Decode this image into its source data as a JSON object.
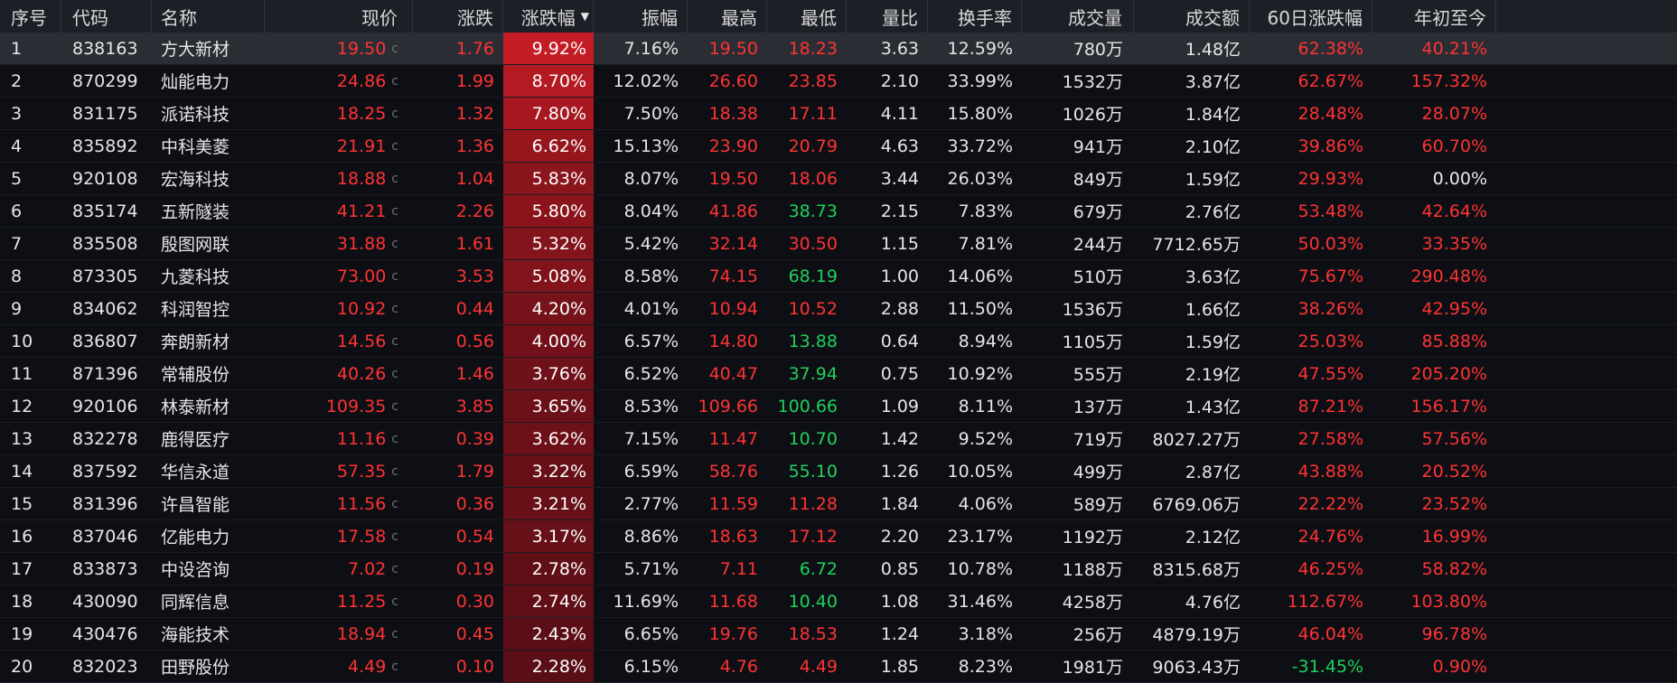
{
  "table": {
    "sort_column": "pct",
    "sort_direction": "desc",
    "sort_icon": "sort-desc-icon",
    "price_suffix": "c",
    "colors": {
      "up": "#ff3333",
      "down": "#1fd15b",
      "flat": "#e8e8e8",
      "heat_base": [
        90,
        14,
        22
      ],
      "heat_max": [
        196,
        28,
        36
      ]
    },
    "columns": [
      {
        "key": "seq",
        "label": "序号"
      },
      {
        "key": "code",
        "label": "代码"
      },
      {
        "key": "name",
        "label": "名称"
      },
      {
        "key": "price",
        "label": "现价"
      },
      {
        "key": "change",
        "label": "涨跌"
      },
      {
        "key": "pct",
        "label": "涨跌幅"
      },
      {
        "key": "amp",
        "label": "振幅"
      },
      {
        "key": "high",
        "label": "最高"
      },
      {
        "key": "low",
        "label": "最低"
      },
      {
        "key": "vr",
        "label": "量比"
      },
      {
        "key": "turnover",
        "label": "换手率"
      },
      {
        "key": "volume",
        "label": "成交量"
      },
      {
        "key": "amount",
        "label": "成交额"
      },
      {
        "key": "d60",
        "label": "60日涨跌幅"
      },
      {
        "key": "ytd",
        "label": "年初至今"
      }
    ],
    "rows": [
      {
        "seq": "1",
        "code": "838163",
        "name": "方大新材",
        "price": "19.50",
        "change": "1.76",
        "pct": "9.92%",
        "amp": "7.16%",
        "high": "19.50",
        "low": "18.23",
        "vr": "3.63",
        "turnover": "12.59%",
        "volume": "780万",
        "amount": "1.48亿",
        "d60": "62.38%",
        "ytd": "40.21%"
      },
      {
        "seq": "2",
        "code": "870299",
        "name": "灿能电力",
        "price": "24.86",
        "change": "1.99",
        "pct": "8.70%",
        "amp": "12.02%",
        "high": "26.60",
        "low": "23.85",
        "vr": "2.10",
        "turnover": "33.99%",
        "volume": "1532万",
        "amount": "3.87亿",
        "d60": "62.67%",
        "ytd": "157.32%"
      },
      {
        "seq": "3",
        "code": "831175",
        "name": "派诺科技",
        "price": "18.25",
        "change": "1.32",
        "pct": "7.80%",
        "amp": "7.50%",
        "high": "18.38",
        "low": "17.11",
        "vr": "4.11",
        "turnover": "15.80%",
        "volume": "1026万",
        "amount": "1.84亿",
        "d60": "28.48%",
        "ytd": "28.07%"
      },
      {
        "seq": "4",
        "code": "835892",
        "name": "中科美菱",
        "price": "21.91",
        "change": "1.36",
        "pct": "6.62%",
        "amp": "15.13%",
        "high": "23.90",
        "low": "20.79",
        "vr": "4.63",
        "turnover": "33.72%",
        "volume": "941万",
        "amount": "2.10亿",
        "d60": "39.86%",
        "ytd": "60.70%"
      },
      {
        "seq": "5",
        "code": "920108",
        "name": "宏海科技",
        "price": "18.88",
        "change": "1.04",
        "pct": "5.83%",
        "amp": "8.07%",
        "high": "19.50",
        "low": "18.06",
        "vr": "3.44",
        "turnover": "26.03%",
        "volume": "849万",
        "amount": "1.59亿",
        "d60": "29.93%",
        "ytd": "0.00%"
      },
      {
        "seq": "6",
        "code": "835174",
        "name": "五新隧装",
        "price": "41.21",
        "change": "2.26",
        "pct": "5.80%",
        "amp": "8.04%",
        "high": "41.86",
        "low": "38.73",
        "vr": "2.15",
        "turnover": "7.83%",
        "volume": "679万",
        "amount": "2.76亿",
        "d60": "53.48%",
        "ytd": "42.64%"
      },
      {
        "seq": "7",
        "code": "835508",
        "name": "殷图网联",
        "price": "31.88",
        "change": "1.61",
        "pct": "5.32%",
        "amp": "5.42%",
        "high": "32.14",
        "low": "30.50",
        "vr": "1.15",
        "turnover": "7.81%",
        "volume": "244万",
        "amount": "7712.65万",
        "d60": "50.03%",
        "ytd": "33.35%"
      },
      {
        "seq": "8",
        "code": "873305",
        "name": "九菱科技",
        "price": "73.00",
        "change": "3.53",
        "pct": "5.08%",
        "amp": "8.58%",
        "high": "74.15",
        "low": "68.19",
        "vr": "1.00",
        "turnover": "14.06%",
        "volume": "510万",
        "amount": "3.63亿",
        "d60": "75.67%",
        "ytd": "290.48%"
      },
      {
        "seq": "9",
        "code": "834062",
        "name": "科润智控",
        "price": "10.92",
        "change": "0.44",
        "pct": "4.20%",
        "amp": "4.01%",
        "high": "10.94",
        "low": "10.52",
        "vr": "2.88",
        "turnover": "11.50%",
        "volume": "1536万",
        "amount": "1.66亿",
        "d60": "38.26%",
        "ytd": "42.95%"
      },
      {
        "seq": "10",
        "code": "836807",
        "name": "奔朗新材",
        "price": "14.56",
        "change": "0.56",
        "pct": "4.00%",
        "amp": "6.57%",
        "high": "14.80",
        "low": "13.88",
        "vr": "0.64",
        "turnover": "8.94%",
        "volume": "1105万",
        "amount": "1.59亿",
        "d60": "25.03%",
        "ytd": "85.88%"
      },
      {
        "seq": "11",
        "code": "871396",
        "name": "常辅股份",
        "price": "40.26",
        "change": "1.46",
        "pct": "3.76%",
        "amp": "6.52%",
        "high": "40.47",
        "low": "37.94",
        "vr": "0.75",
        "turnover": "10.92%",
        "volume": "555万",
        "amount": "2.19亿",
        "d60": "47.55%",
        "ytd": "205.20%"
      },
      {
        "seq": "12",
        "code": "920106",
        "name": "林泰新材",
        "price": "109.35",
        "change": "3.85",
        "pct": "3.65%",
        "amp": "8.53%",
        "high": "109.66",
        "low": "100.66",
        "vr": "1.09",
        "turnover": "8.11%",
        "volume": "137万",
        "amount": "1.43亿",
        "d60": "87.21%",
        "ytd": "156.17%"
      },
      {
        "seq": "13",
        "code": "832278",
        "name": "鹿得医疗",
        "price": "11.16",
        "change": "0.39",
        "pct": "3.62%",
        "amp": "7.15%",
        "high": "11.47",
        "low": "10.70",
        "vr": "1.42",
        "turnover": "9.52%",
        "volume": "719万",
        "amount": "8027.27万",
        "d60": "27.58%",
        "ytd": "57.56%"
      },
      {
        "seq": "14",
        "code": "837592",
        "name": "华信永道",
        "price": "57.35",
        "change": "1.79",
        "pct": "3.22%",
        "amp": "6.59%",
        "high": "58.76",
        "low": "55.10",
        "vr": "1.26",
        "turnover": "10.05%",
        "volume": "499万",
        "amount": "2.87亿",
        "d60": "43.88%",
        "ytd": "20.52%"
      },
      {
        "seq": "15",
        "code": "831396",
        "name": "许昌智能",
        "price": "11.56",
        "change": "0.36",
        "pct": "3.21%",
        "amp": "2.77%",
        "high": "11.59",
        "low": "11.28",
        "vr": "1.84",
        "turnover": "4.06%",
        "volume": "589万",
        "amount": "6769.06万",
        "d60": "22.22%",
        "ytd": "23.52%"
      },
      {
        "seq": "16",
        "code": "837046",
        "name": "亿能电力",
        "price": "17.58",
        "change": "0.54",
        "pct": "3.17%",
        "amp": "8.86%",
        "high": "18.63",
        "low": "17.12",
        "vr": "2.20",
        "turnover": "23.17%",
        "volume": "1192万",
        "amount": "2.12亿",
        "d60": "24.76%",
        "ytd": "16.99%"
      },
      {
        "seq": "17",
        "code": "833873",
        "name": "中设咨询",
        "price": "7.02",
        "change": "0.19",
        "pct": "2.78%",
        "amp": "5.71%",
        "high": "7.11",
        "low": "6.72",
        "vr": "0.85",
        "turnover": "10.78%",
        "volume": "1188万",
        "amount": "8315.68万",
        "d60": "46.25%",
        "ytd": "58.82%"
      },
      {
        "seq": "18",
        "code": "430090",
        "name": "同辉信息",
        "price": "11.25",
        "change": "0.30",
        "pct": "2.74%",
        "amp": "11.69%",
        "high": "11.68",
        "low": "10.40",
        "vr": "1.08",
        "turnover": "31.46%",
        "volume": "4258万",
        "amount": "4.76亿",
        "d60": "112.67%",
        "ytd": "103.80%"
      },
      {
        "seq": "19",
        "code": "430476",
        "name": "海能技术",
        "price": "18.94",
        "change": "0.45",
        "pct": "2.43%",
        "amp": "6.65%",
        "high": "19.76",
        "low": "18.53",
        "vr": "1.24",
        "turnover": "3.18%",
        "volume": "256万",
        "amount": "4879.19万",
        "d60": "46.04%",
        "ytd": "96.78%"
      },
      {
        "seq": "20",
        "code": "832023",
        "name": "田野股份",
        "price": "4.49",
        "change": "0.10",
        "pct": "2.28%",
        "amp": "6.15%",
        "high": "4.76",
        "low": "4.49",
        "vr": "1.85",
        "turnover": "8.23%",
        "volume": "1981万",
        "amount": "9063.43万",
        "d60": "-31.45%",
        "ytd": "0.90%"
      }
    ]
  }
}
